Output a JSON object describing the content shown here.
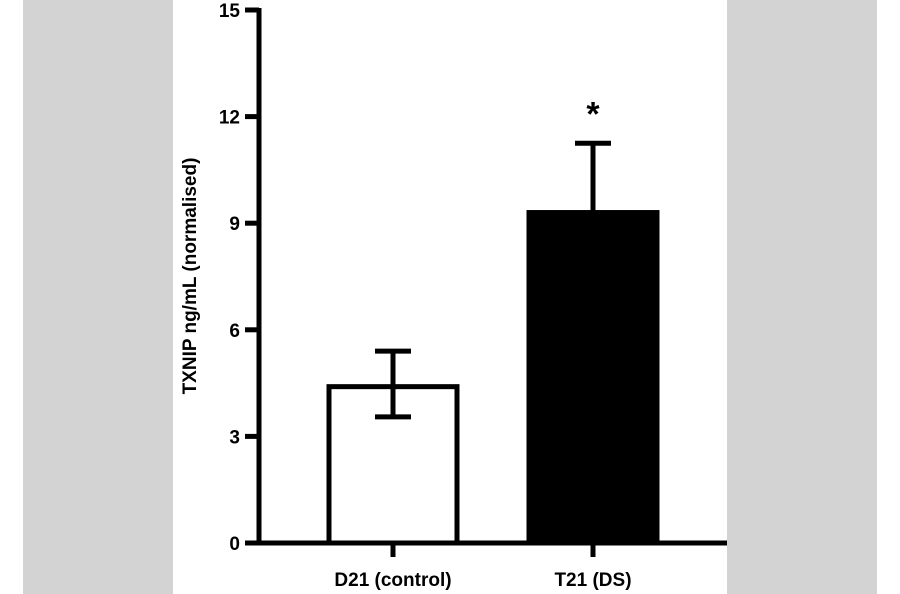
{
  "colors": {
    "background_band": "#d3d3d3",
    "panel": "#ffffff",
    "axis": "#000000"
  },
  "chart_data": {
    "type": "bar",
    "title": "",
    "xlabel": "",
    "ylabel": "TXNIP ng/mL (normalised)",
    "ylim": [
      0,
      15
    ],
    "yticks": [
      "0",
      "3",
      "6",
      "9",
      "12",
      "15"
    ],
    "categories": [
      "D21 (control)",
      "T21 (DS)"
    ],
    "values": [
      4.4,
      9.3
    ],
    "error_upper": [
      5.4,
      11.25
    ],
    "error_lower": [
      3.55,
      null
    ],
    "bar_fill": [
      "#ffffff",
      "#000000"
    ],
    "annotations": [
      {
        "category": "T21 (DS)",
        "text": "*"
      }
    ],
    "grid": false,
    "legend": "none"
  }
}
